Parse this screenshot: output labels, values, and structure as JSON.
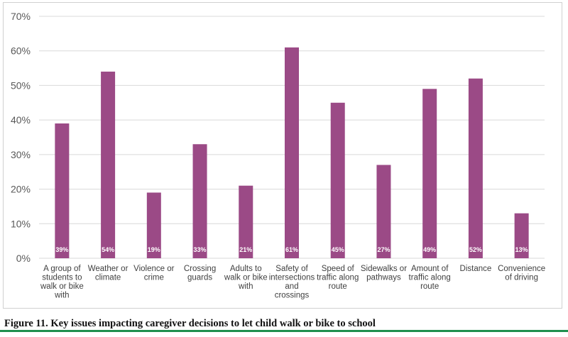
{
  "chart_data": {
    "type": "bar",
    "title": "",
    "xlabel": "",
    "ylabel": "",
    "ylim": [
      0,
      70
    ],
    "yticks": [
      "0%",
      "10%",
      "20%",
      "30%",
      "40%",
      "50%",
      "60%",
      "70%"
    ],
    "grid": true,
    "categories": [
      [
        "A group of",
        "students to",
        "walk or bike",
        "with"
      ],
      [
        "Weather or",
        "climate"
      ],
      [
        "Violence or",
        "crime"
      ],
      [
        "Crossing",
        "guards"
      ],
      [
        "Adults to",
        "walk or bike",
        "with"
      ],
      [
        "Safety of",
        "intersections",
        "and",
        "crossings"
      ],
      [
        "Speed of",
        "traffic along",
        "route"
      ],
      [
        "Sidewalks or",
        "pathways"
      ],
      [
        "Amount of",
        "traffic along",
        "route"
      ],
      [
        "Distance"
      ],
      [
        "Convenience",
        "of driving"
      ]
    ],
    "values": [
      39,
      54,
      19,
      33,
      21,
      61,
      45,
      27,
      49,
      52,
      13
    ],
    "data_labels": [
      "39%",
      "54%",
      "19%",
      "33%",
      "21%",
      "61%",
      "45%",
      "27%",
      "49%",
      "52%",
      "13%"
    ],
    "bar_color": "#9b4a86",
    "grid_color": "#d9d9d9"
  },
  "caption": "Figure 11. Key issues impacting caregiver decisions to let child walk or bike to school",
  "accent_color": "#1f8f4e"
}
